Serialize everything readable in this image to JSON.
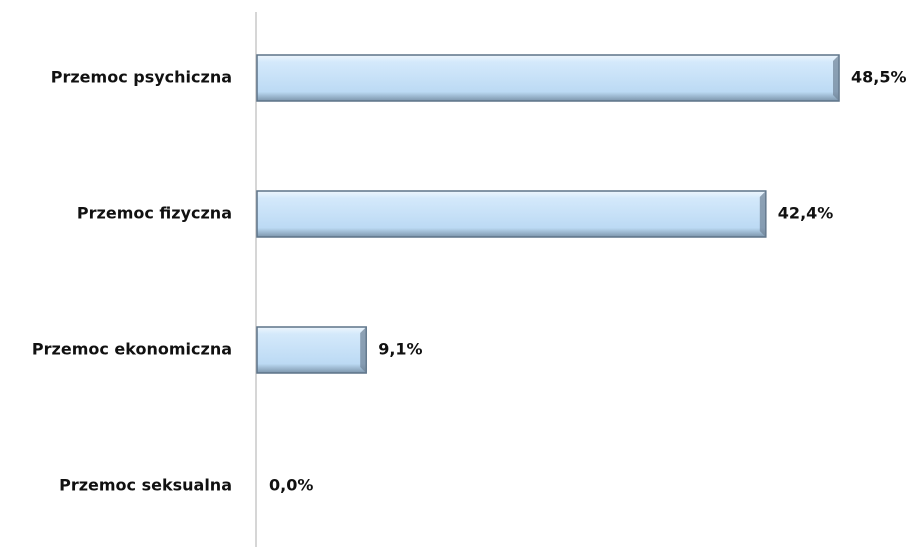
{
  "chart_data": {
    "type": "bar",
    "orientation": "horizontal",
    "categories": [
      "Przemoc psychiczna",
      "Przemoc fizyczna",
      "Przemoc ekonomiczna",
      "Przemoc seksualna"
    ],
    "values": [
      48.5,
      42.4,
      9.1,
      0.0
    ],
    "value_labels": [
      "48,5%",
      "42,4%",
      "9,1%",
      "0,0%"
    ],
    "color": "#c6e0f7"
  }
}
